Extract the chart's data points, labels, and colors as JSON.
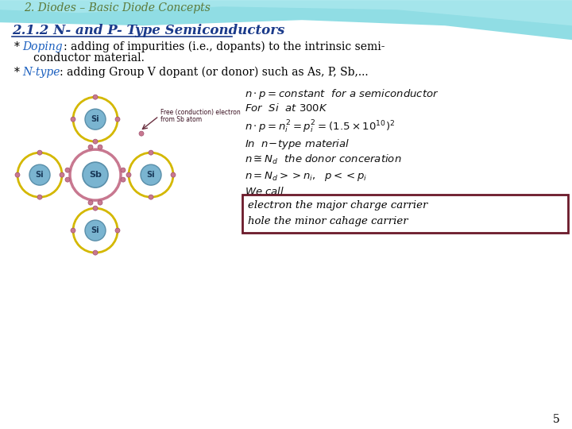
{
  "header_title": "2. Diodes – Basic Diode Concepts",
  "header_color": "#5b7a3a",
  "subtitle": "2.1.2 N- and P- Type Semiconductors",
  "subtitle_color": "#1a3a8a",
  "box_text1": "electron the major charge carrier",
  "box_text2": "hole the minor cahage carrier",
  "box_color": "#6b1a2a",
  "page_num": "5",
  "si_color": "#7ab4d0",
  "ring_color_yellow": "#d4b800",
  "ring_color_pink": "#c87890",
  "header1_color": "#7dd8e0",
  "header2_color": "#b0eaf0",
  "label_blue": "#1a5fbf",
  "eq_color": "#111111"
}
